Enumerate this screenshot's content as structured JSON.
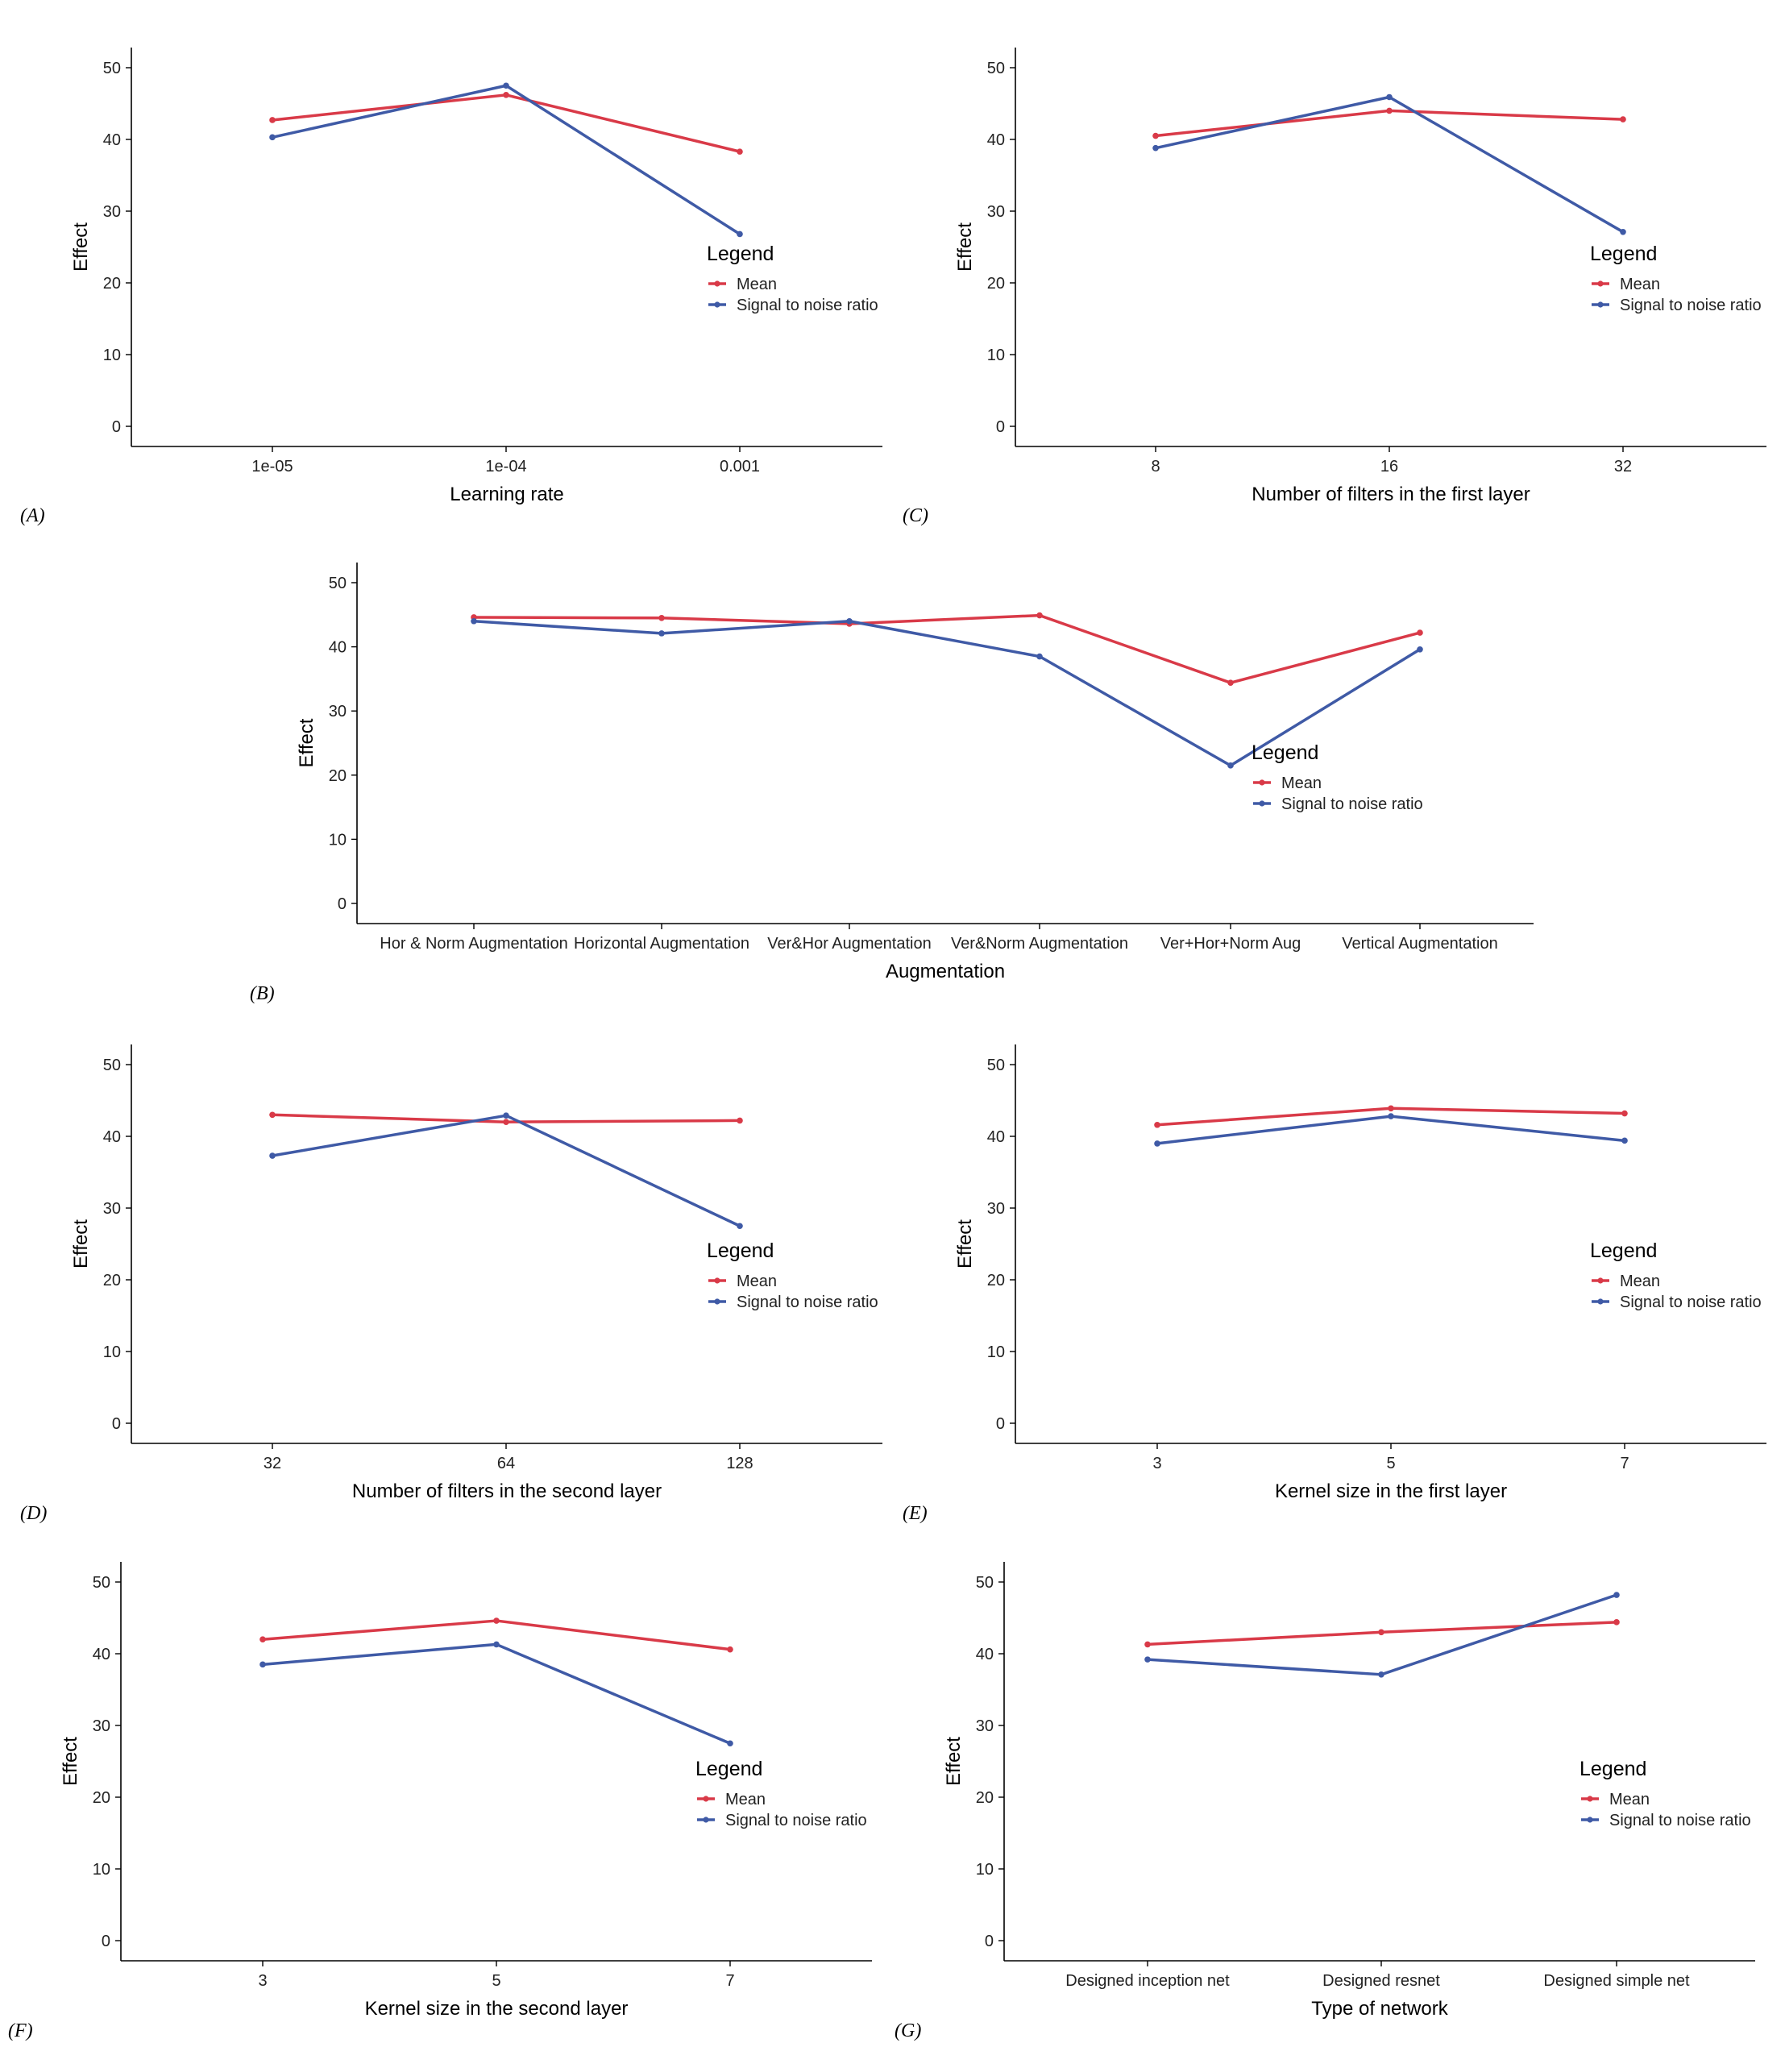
{
  "colors": {
    "mean": "#d93a48",
    "snr": "#3f5aa6",
    "axis": "#000000"
  },
  "chart_data": [
    {
      "panel": "(A)",
      "type": "line",
      "categories": [
        "1e-05",
        "1e-04",
        "0.001"
      ],
      "xlabel": "Learning rate",
      "ylabel": "Effect",
      "ylim": [
        0,
        50
      ],
      "yticks": [
        0,
        10,
        20,
        30,
        40,
        50
      ],
      "legend_title": "Legend",
      "series": [
        {
          "name": "Mean",
          "values": [
            42.7,
            46.2,
            38.3
          ]
        },
        {
          "name": "Signal to noise ratio",
          "values": [
            40.3,
            47.5,
            26.8
          ]
        }
      ]
    },
    {
      "panel": "(C)",
      "type": "line",
      "categories": [
        "8",
        "16",
        "32"
      ],
      "xlabel": "Number of filters in the first layer",
      "ylabel": "Effect",
      "ylim": [
        0,
        50
      ],
      "yticks": [
        0,
        10,
        20,
        30,
        40,
        50
      ],
      "legend_title": "Legend",
      "series": [
        {
          "name": "Mean",
          "values": [
            40.5,
            44.0,
            42.8
          ]
        },
        {
          "name": "Signal to noise ratio",
          "values": [
            38.8,
            45.9,
            27.1
          ]
        }
      ]
    },
    {
      "panel": "(B)",
      "type": "line",
      "categories": [
        "Hor & Norm Augmentation",
        "Horizontal Augmentation",
        "Ver&Hor Augmentation",
        "Ver&Norm Augmentation",
        "Ver+Hor+Norm Aug",
        "Vertical Augmentation"
      ],
      "xlabel": "Augmentation",
      "ylabel": "Effect",
      "ylim": [
        0,
        50
      ],
      "yticks": [
        0,
        10,
        20,
        30,
        40,
        50
      ],
      "legend_title": "Legend",
      "series": [
        {
          "name": "Mean",
          "values": [
            44.6,
            44.5,
            43.6,
            44.9,
            34.4,
            42.2
          ]
        },
        {
          "name": "Signal to noise ratio",
          "values": [
            44.0,
            42.1,
            44.0,
            38.5,
            21.5,
            39.6
          ]
        }
      ]
    },
    {
      "panel": "(D)",
      "type": "line",
      "categories": [
        "32",
        "64",
        "128"
      ],
      "xlabel": "Number of filters in the second layer",
      "ylabel": "Effect",
      "ylim": [
        0,
        50
      ],
      "yticks": [
        0,
        10,
        20,
        30,
        40,
        50
      ],
      "legend_title": "Legend",
      "series": [
        {
          "name": "Mean",
          "values": [
            43.0,
            42.0,
            42.2
          ]
        },
        {
          "name": "Signal to noise ratio",
          "values": [
            37.3,
            42.9,
            27.5
          ]
        }
      ]
    },
    {
      "panel": "(E)",
      "type": "line",
      "categories": [
        "3",
        "5",
        "7"
      ],
      "xlabel": "Kernel size in the first layer",
      "ylabel": "Effect",
      "ylim": [
        0,
        50
      ],
      "yticks": [
        0,
        10,
        20,
        30,
        40,
        50
      ],
      "legend_title": "Legend",
      "series": [
        {
          "name": "Mean",
          "values": [
            41.6,
            43.9,
            43.2
          ]
        },
        {
          "name": "Signal to noise ratio",
          "values": [
            39.0,
            42.8,
            39.4
          ]
        }
      ]
    },
    {
      "panel": "(F)",
      "type": "line",
      "categories": [
        "3",
        "5",
        "7"
      ],
      "xlabel": "Kernel size in the second layer",
      "ylabel": "Effect",
      "ylim": [
        0,
        50
      ],
      "yticks": [
        0,
        10,
        20,
        30,
        40,
        50
      ],
      "legend_title": "Legend",
      "series": [
        {
          "name": "Mean",
          "values": [
            42.0,
            44.6,
            40.6
          ]
        },
        {
          "name": "Signal to noise ratio",
          "values": [
            38.5,
            41.3,
            27.5
          ]
        }
      ]
    },
    {
      "panel": "(G)",
      "type": "line",
      "categories": [
        "Designed inception net",
        "Designed resnet",
        "Designed simple net"
      ],
      "xlabel": "Type of network",
      "ylabel": "Effect",
      "ylim": [
        0,
        50
      ],
      "yticks": [
        0,
        10,
        20,
        30,
        40,
        50
      ],
      "legend_title": "Legend",
      "series": [
        {
          "name": "Mean",
          "values": [
            41.3,
            43.0,
            44.4
          ]
        },
        {
          "name": "Signal to noise ratio",
          "values": [
            39.2,
            37.1,
            48.2
          ]
        }
      ]
    }
  ]
}
